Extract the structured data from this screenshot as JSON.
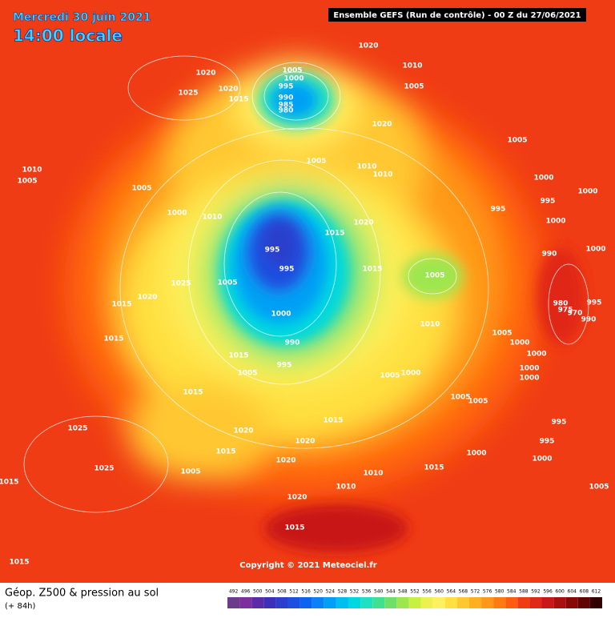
{
  "header": {
    "date": "Mercredi 30 juin 2021",
    "time": "14:00 locale",
    "run": "Ensemble GEFS  (Run de contrôle)  -  00 Z du 27/06/2021"
  },
  "map": {
    "isobar_labels": [
      "1020",
      "1010",
      "1005",
      "1020",
      "1025",
      "1020",
      "1015",
      "1005",
      "1000",
      "995",
      "990",
      "985",
      "980",
      "1020",
      "1005",
      "1010",
      "1005",
      "1005",
      "1005",
      "1010",
      "1010",
      "1000",
      "1000",
      "995",
      "1000",
      "1010",
      "995",
      "1020",
      "1015",
      "1000",
      "995",
      "995",
      "990",
      "1000",
      "1015",
      "1005",
      "1025",
      "1005",
      "1020",
      "1015",
      "980",
      "975",
      "970",
      "995",
      "990",
      "1000",
      "1010",
      "1005",
      "1000",
      "1015",
      "990",
      "1015",
      "1005",
      "995",
      "1000",
      "1000",
      "1000",
      "1000",
      "1005",
      "1015",
      "1005",
      "1005",
      "995",
      "1015",
      "1020",
      "1025",
      "995",
      "1020",
      "1015",
      "1000",
      "1020",
      "1000",
      "1025",
      "1005",
      "1015",
      "1010",
      "1015",
      "1010",
      "1005",
      "1020",
      "1015",
      "1015"
    ],
    "copyright": "Copyright © 2021 Meteociel.fr"
  },
  "legend": {
    "title": "Géop. Z500 & pression au sol",
    "lead": "(+ 84h)",
    "values": [
      492,
      496,
      500,
      504,
      508,
      512,
      516,
      520,
      524,
      528,
      532,
      536,
      540,
      544,
      548,
      552,
      556,
      560,
      564,
      568,
      572,
      576,
      580,
      584,
      588,
      592,
      596,
      600,
      604,
      608,
      612
    ],
    "colors": [
      "#6b3b8c",
      "#7d2f9e",
      "#5a2aa8",
      "#3d2fb8",
      "#2a3fcc",
      "#1f4fe0",
      "#0a64f0",
      "#0a82f5",
      "#00a0f5",
      "#00bff0",
      "#00d8e0",
      "#1fe0c0",
      "#40e090",
      "#6ee06a",
      "#9ee650",
      "#c8f040",
      "#eef050",
      "#fff060",
      "#ffe040",
      "#ffc830",
      "#ffb020",
      "#ff9818",
      "#ff7a10",
      "#ff5c10",
      "#f03c14",
      "#e02818",
      "#c81818",
      "#a81010",
      "#880808",
      "#600404",
      "#300000"
    ]
  }
}
